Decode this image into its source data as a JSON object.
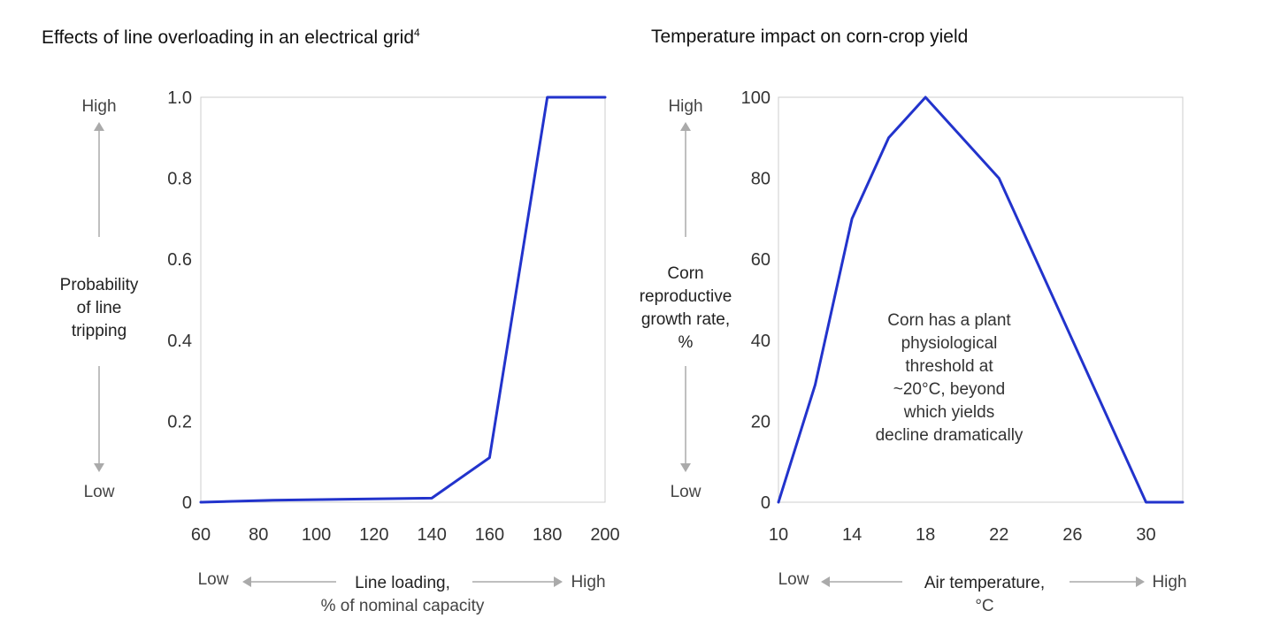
{
  "chart_data": [
    {
      "type": "line",
      "title": "Effects of line overloading in an electrical grid",
      "title_sup": "4",
      "ylabel": [
        "Probability",
        "of line",
        "tripping"
      ],
      "xlabel": [
        "Line loading,",
        "% of nominal capacity"
      ],
      "y_high": "High",
      "y_low": "Low",
      "x_low": "Low",
      "x_high": "High",
      "xlim": [
        60,
        200
      ],
      "ylim": [
        0,
        1.0
      ],
      "xticks": [
        60,
        80,
        100,
        120,
        140,
        160,
        180,
        200
      ],
      "yticks": [
        0,
        0.2,
        0.4,
        0.6,
        0.8,
        1.0
      ],
      "yticklabels": [
        "0",
        "0.2",
        "0.4",
        "0.6",
        "0.8",
        "1.0"
      ],
      "series": [
        {
          "color": "#2233cc",
          "x": [
            60,
            85,
            140,
            160,
            180,
            200
          ],
          "y": [
            0,
            0.005,
            0.01,
            0.11,
            1.0,
            1.0
          ]
        }
      ]
    },
    {
      "type": "line",
      "title": "Temperature impact on corn-crop yield",
      "ylabel": [
        "Corn",
        "reproductive",
        "growth rate,",
        "%"
      ],
      "xlabel": [
        "Air temperature,",
        "°C"
      ],
      "y_high": "High",
      "y_low": "Low",
      "x_low": "Low",
      "x_high": "High",
      "xlim": [
        10,
        32
      ],
      "ylim": [
        0,
        100
      ],
      "xticks": [
        10,
        14,
        18,
        22,
        26,
        30
      ],
      "yticks": [
        0,
        20,
        40,
        60,
        80,
        100
      ],
      "yticklabels": [
        "0",
        "20",
        "40",
        "60",
        "80",
        "100"
      ],
      "annotation": [
        "Corn has a plant",
        "physiological",
        "threshold at",
        "~20°C, beyond",
        "which yields",
        "decline dramatically"
      ],
      "series": [
        {
          "color": "#2233cc",
          "x": [
            10,
            12,
            14,
            16,
            18,
            22,
            30,
            32
          ],
          "y": [
            0,
            29,
            70,
            90,
            100,
            80,
            0,
            0
          ]
        }
      ]
    }
  ]
}
